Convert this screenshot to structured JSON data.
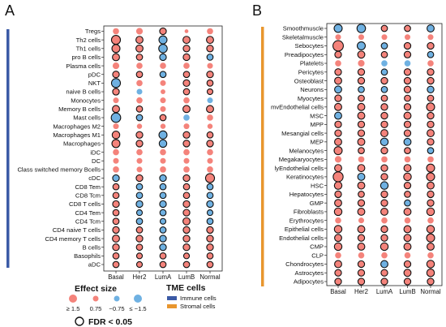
{
  "figure": {
    "panel_labels": [
      "A",
      "B"
    ]
  },
  "colors": {
    "positive": "#f4837b",
    "negative": "#6fb1e2",
    "immune_bar": "#3b5aa6",
    "stromal_bar": "#e8962e",
    "outline": "#111111"
  },
  "legend": {
    "effect_title": "Effect size",
    "effect_items": [
      {
        "label": "≥ 1.5",
        "value": 1.5
      },
      {
        "label": "0.75",
        "value": 0.75
      },
      {
        "label": "−0.75",
        "value": -0.75
      },
      {
        "label": "≤ −1.5",
        "value": -1.5
      }
    ],
    "tme_title": "TME cells",
    "tme_items": [
      {
        "label": "Immune cells",
        "color": "#3b5aa6"
      },
      {
        "label": "Stromal cells",
        "color": "#e8962e"
      }
    ],
    "fdr_label": "FDR < 0.05"
  },
  "chart_data": [
    {
      "type": "scatter",
      "subtype": "dot-matrix",
      "panel": "A",
      "group": "Immune cells",
      "categories_x": [
        "Basal",
        "Her2",
        "LumA",
        "LumB",
        "Normal"
      ],
      "categories_y": [
        "Tregs",
        "Th2 cells",
        "Th1 cells",
        "pro B cells",
        "Plasma cells",
        "pDC",
        "NKT",
        "naive B cells",
        "Monocytes",
        "Memory B cells",
        "Mast cells",
        "Macrophages M2",
        "Macrophages M1",
        "Macrophages",
        "iDC",
        "DC",
        "Class switched memory Bcells",
        "cDC",
        "CD8 Tem",
        "CD8 Tcm",
        "CD8 T cells",
        "CD4 Tem",
        "CD4 Tcm",
        "CD4 naive T cells",
        "CD4 memory T cells",
        "B cells",
        "Basophils",
        "aDC"
      ],
      "effect_size": [
        [
          0.9,
          1.0,
          1.0,
          0.4,
          0.9
        ],
        [
          1.5,
          1.1,
          -1.3,
          1.1,
          1.1
        ],
        [
          1.3,
          1.1,
          -1.4,
          1.0,
          1.0
        ],
        [
          1.1,
          0.9,
          -1.0,
          1.0,
          -0.9
        ],
        [
          1.0,
          0.9,
          0.9,
          0.9,
          0.8
        ],
        [
          1.0,
          0.9,
          -0.9,
          0.9,
          1.0
        ],
        [
          -1.5,
          0.9,
          0.8,
          1.0,
          0.9
        ],
        [
          1.0,
          -0.8,
          0.6,
          0.9,
          0.8
        ],
        [
          0.8,
          0.9,
          0.8,
          0.9,
          -0.8
        ],
        [
          1.1,
          0.9,
          0.8,
          1.1,
          1.1
        ],
        [
          -1.6,
          -0.9,
          0.9,
          -0.9,
          0.9
        ],
        [
          0.8,
          0.7,
          0.7,
          0.8,
          0.7
        ],
        [
          1.2,
          1.0,
          -1.3,
          1.0,
          0.9
        ],
        [
          1.3,
          1.0,
          -1.2,
          1.0,
          1.0
        ],
        [
          0.9,
          0.9,
          0.9,
          0.9,
          0.9
        ],
        [
          0.8,
          0.8,
          0.8,
          0.8,
          0.8
        ],
        [
          0.9,
          0.8,
          0.9,
          0.9,
          0.9
        ],
        [
          -1.0,
          1.0,
          -1.0,
          1.0,
          1.5
        ],
        [
          0.9,
          -0.9,
          -0.9,
          0.9,
          -0.9
        ],
        [
          0.9,
          -0.9,
          -0.9,
          0.9,
          -0.9
        ],
        [
          1.0,
          -1.0,
          -1.0,
          1.0,
          -1.0
        ],
        [
          0.9,
          -0.8,
          -0.9,
          1.0,
          -0.8
        ],
        [
          0.9,
          -0.9,
          -0.8,
          1.1,
          -0.9
        ],
        [
          1.0,
          0.9,
          -0.9,
          1.0,
          1.0
        ],
        [
          1.1,
          1.0,
          -1.0,
          1.0,
          1.0
        ],
        [
          1.0,
          0.9,
          -1.0,
          1.0,
          1.0
        ],
        [
          0.9,
          0.8,
          0.9,
          0.8,
          0.9
        ],
        [
          0.9,
          0.8,
          0.9,
          0.9,
          0.9
        ]
      ],
      "fdr_significant": [
        [
          0,
          0,
          1,
          0,
          0
        ],
        [
          1,
          1,
          1,
          1,
          1
        ],
        [
          1,
          1,
          1,
          1,
          1
        ],
        [
          1,
          1,
          1,
          1,
          1
        ],
        [
          0,
          0,
          0,
          0,
          0
        ],
        [
          1,
          1,
          1,
          1,
          1
        ],
        [
          1,
          0,
          0,
          1,
          1
        ],
        [
          1,
          0,
          0,
          1,
          1
        ],
        [
          0,
          0,
          0,
          0,
          0
        ],
        [
          1,
          1,
          0,
          1,
          1
        ],
        [
          1,
          1,
          1,
          0,
          0
        ],
        [
          0,
          0,
          0,
          0,
          0
        ],
        [
          1,
          1,
          1,
          1,
          1
        ],
        [
          1,
          1,
          1,
          1,
          1
        ],
        [
          0,
          0,
          0,
          0,
          0
        ],
        [
          0,
          0,
          0,
          0,
          0
        ],
        [
          0,
          0,
          0,
          0,
          0
        ],
        [
          1,
          1,
          1,
          1,
          1
        ],
        [
          1,
          1,
          1,
          1,
          1
        ],
        [
          1,
          1,
          1,
          1,
          1
        ],
        [
          1,
          1,
          1,
          1,
          1
        ],
        [
          1,
          1,
          1,
          1,
          1
        ],
        [
          1,
          1,
          1,
          1,
          1
        ],
        [
          1,
          1,
          1,
          1,
          1
        ],
        [
          1,
          1,
          1,
          1,
          1
        ],
        [
          1,
          1,
          1,
          1,
          1
        ],
        [
          1,
          1,
          1,
          1,
          1
        ],
        [
          1,
          1,
          1,
          1,
          1
        ]
      ]
    },
    {
      "type": "scatter",
      "subtype": "dot-matrix",
      "panel": "B",
      "group": "Stromal cells",
      "categories_x": [
        "Basal",
        "Her2",
        "LumA",
        "LumB",
        "Normal"
      ],
      "categories_y": [
        "Smoothmuscle",
        "Skeletalmuscle",
        "Sebocytes",
        "Preadipocytes",
        "Platelets",
        "Pericytes",
        "Osteoblast",
        "Neurons",
        "Myocytes",
        "mvEndothelial cells",
        "MSC",
        "MPP",
        "Mesangial cells",
        "MEP",
        "Melanocytes",
        "Megakaryocytes",
        "lyEndothelial cells",
        "Keratinocytes",
        "HSC",
        "Hepatocytes",
        "GMP",
        "Fibroblasts",
        "Erythrocytes",
        "Epithelial cells",
        "Endothelial cells",
        "CMP",
        "CLP",
        "Chondrocytes",
        "Astrocytes",
        "Adipocytes"
      ],
      "effect_size": [
        [
          -1.3,
          -1.4,
          0.9,
          0.9,
          -1.1
        ],
        [
          0.8,
          0.8,
          0.8,
          0.8,
          0.8
        ],
        [
          1.8,
          -1.3,
          -0.9,
          1.0,
          1.0
        ],
        [
          1.0,
          1.1,
          0.9,
          1.0,
          -0.9
        ],
        [
          0.9,
          1.0,
          -0.9,
          -0.9,
          0.9
        ],
        [
          1.0,
          1.0,
          -0.9,
          1.0,
          1.0
        ],
        [
          1.1,
          1.0,
          1.0,
          1.0,
          1.0
        ],
        [
          -1.1,
          -0.9,
          -0.9,
          1.0,
          -1.0
        ],
        [
          1.0,
          0.9,
          0.9,
          0.9,
          0.9
        ],
        [
          1.1,
          1.1,
          1.0,
          1.0,
          1.3
        ],
        [
          -1.1,
          1.1,
          1.0,
          1.1,
          1.0
        ],
        [
          1.0,
          1.0,
          1.0,
          1.0,
          1.0
        ],
        [
          1.0,
          1.0,
          1.1,
          1.0,
          1.1
        ],
        [
          1.1,
          1.1,
          -1.2,
          -1.1,
          1.0
        ],
        [
          1.3,
          0.9,
          1.0,
          0.9,
          -0.9
        ],
        [
          1.0,
          0.9,
          0.9,
          0.9,
          0.9
        ],
        [
          1.1,
          1.1,
          1.0,
          1.1,
          1.3
        ],
        [
          1.7,
          -1.1,
          1.0,
          1.2,
          1.3
        ],
        [
          1.2,
          1.1,
          -1.2,
          1.0,
          1.1
        ],
        [
          1.0,
          0.9,
          1.0,
          0.9,
          1.0
        ],
        [
          1.1,
          1.0,
          1.0,
          -0.9,
          1.0
        ],
        [
          1.2,
          1.1,
          1.1,
          1.1,
          1.2
        ],
        [
          0.9,
          0.8,
          0.9,
          0.9,
          0.9
        ],
        [
          1.2,
          1.1,
          1.0,
          1.1,
          1.2
        ],
        [
          1.1,
          1.0,
          1.0,
          1.1,
          1.3
        ],
        [
          1.2,
          1.1,
          1.2,
          1.1,
          1.1
        ],
        [
          0.9,
          0.9,
          0.9,
          0.9,
          0.9
        ],
        [
          1.1,
          1.0,
          -1.1,
          1.0,
          1.2
        ],
        [
          1.0,
          1.0,
          1.0,
          1.1,
          1.2
        ],
        [
          1.0,
          1.0,
          1.0,
          1.0,
          1.0
        ]
      ],
      "fdr_significant": [
        [
          1,
          1,
          1,
          1,
          1
        ],
        [
          0,
          0,
          0,
          0,
          0
        ],
        [
          1,
          1,
          1,
          1,
          1
        ],
        [
          1,
          1,
          1,
          1,
          1
        ],
        [
          0,
          0,
          0,
          0,
          0
        ],
        [
          1,
          1,
          1,
          1,
          1
        ],
        [
          1,
          1,
          1,
          1,
          1
        ],
        [
          1,
          1,
          1,
          1,
          1
        ],
        [
          1,
          1,
          1,
          1,
          1
        ],
        [
          1,
          1,
          1,
          1,
          1
        ],
        [
          1,
          1,
          1,
          1,
          1
        ],
        [
          1,
          1,
          1,
          1,
          1
        ],
        [
          1,
          1,
          1,
          1,
          1
        ],
        [
          1,
          1,
          1,
          1,
          1
        ],
        [
          1,
          1,
          1,
          1,
          1
        ],
        [
          0,
          0,
          0,
          0,
          0
        ],
        [
          1,
          1,
          1,
          1,
          1
        ],
        [
          1,
          1,
          1,
          1,
          1
        ],
        [
          1,
          1,
          1,
          1,
          1
        ],
        [
          1,
          1,
          1,
          1,
          1
        ],
        [
          1,
          1,
          1,
          1,
          1
        ],
        [
          1,
          1,
          1,
          1,
          1
        ],
        [
          0,
          0,
          0,
          0,
          0
        ],
        [
          1,
          1,
          1,
          1,
          1
        ],
        [
          1,
          1,
          1,
          1,
          1
        ],
        [
          1,
          1,
          1,
          1,
          1
        ],
        [
          0,
          0,
          0,
          0,
          0
        ],
        [
          1,
          1,
          1,
          1,
          1
        ],
        [
          1,
          1,
          1,
          1,
          1
        ],
        [
          1,
          1,
          1,
          1,
          1
        ]
      ]
    }
  ]
}
